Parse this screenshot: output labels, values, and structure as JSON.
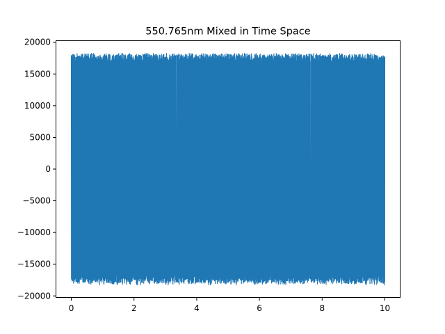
{
  "chart_data": {
    "type": "line",
    "title": "550.765nm Mixed in Time Space",
    "xlabel": "",
    "ylabel": "",
    "xlim": [
      -0.5,
      10.5
    ],
    "ylim": [
      -20300,
      20300
    ],
    "x_ticks": [
      0,
      2,
      4,
      6,
      8,
      10
    ],
    "x_tick_labels": [
      "0",
      "2",
      "4",
      "6",
      "8",
      "10"
    ],
    "y_ticks": [
      -20000,
      -15000,
      -10000,
      -5000,
      0,
      5000,
      10000,
      15000,
      20000
    ],
    "y_tick_labels": [
      "−20000",
      "−15000",
      "−10000",
      "−5000",
      "0",
      "5000",
      "10000",
      "15000",
      "20000"
    ],
    "grid": false,
    "legend": "none",
    "series": [
      {
        "color": "#1f77b4",
        "x_range": [
          0,
          10
        ],
        "amplitude_max": 18300,
        "amplitude_min": -18300,
        "typical_upper_envelope": 18000,
        "typical_lower_envelope": -17800
      }
    ]
  }
}
